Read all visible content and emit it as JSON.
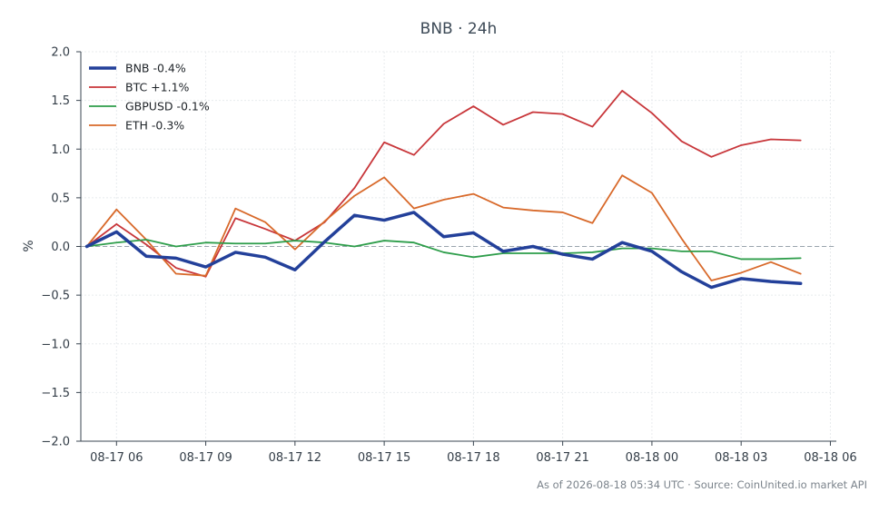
{
  "chart_data": {
    "type": "line",
    "title": "BNB · 24h",
    "xlabel": "",
    "ylabel": "%",
    "ylim": [
      -2.0,
      2.0
    ],
    "xlim": [
      "2026-08-17 04:48",
      "2026-08-18 06:12"
    ],
    "yticks": [
      -2.0,
      -1.5,
      -1.0,
      -0.5,
      0.0,
      0.5,
      1.0,
      1.5,
      2.0
    ],
    "ytick_labels": [
      "−2.0",
      "−1.5",
      "−1.0",
      "−0.5",
      "0.0",
      "0.5",
      "1.0",
      "1.5",
      "2.0"
    ],
    "xticks": [
      "2026-08-17 06:00",
      "2026-08-17 09:00",
      "2026-08-17 12:00",
      "2026-08-17 15:00",
      "2026-08-17 18:00",
      "2026-08-17 21:00",
      "2026-08-18 00:00",
      "2026-08-18 03:00",
      "2026-08-18 06:00"
    ],
    "xtick_labels": [
      "08-17 06",
      "08-17 09",
      "08-17 12",
      "08-17 15",
      "08-17 18",
      "08-17 21",
      "08-18 00",
      "08-18 03",
      "08-18 06"
    ],
    "grid": true,
    "zero_line": true,
    "legend_position": "top-left",
    "x": [
      "2026-08-17 05:00",
      "2026-08-17 06:00",
      "2026-08-17 07:00",
      "2026-08-17 08:00",
      "2026-08-17 09:00",
      "2026-08-17 10:00",
      "2026-08-17 11:00",
      "2026-08-17 12:00",
      "2026-08-17 13:00",
      "2026-08-17 14:00",
      "2026-08-17 15:00",
      "2026-08-17 16:00",
      "2026-08-17 17:00",
      "2026-08-17 18:00",
      "2026-08-17 19:00",
      "2026-08-17 20:00",
      "2026-08-17 21:00",
      "2026-08-17 22:00",
      "2026-08-17 23:00",
      "2026-08-18 00:00",
      "2026-08-18 01:00",
      "2026-08-18 02:00",
      "2026-08-18 03:00",
      "2026-08-18 04:00",
      "2026-08-18 05:00"
    ],
    "series": [
      {
        "name": "BNB -0.4%",
        "color": "#23409a",
        "width": 3.5,
        "values": [
          0.0,
          0.15,
          -0.1,
          -0.12,
          -0.21,
          -0.06,
          -0.11,
          -0.24,
          0.05,
          0.32,
          0.27,
          0.35,
          0.1,
          0.14,
          -0.05,
          0.0,
          -0.08,
          -0.13,
          0.04,
          -0.05,
          -0.26,
          -0.42,
          -0.33,
          -0.36,
          -0.38
        ]
      },
      {
        "name": "BTC +1.1%",
        "color": "#c8363a",
        "width": 1.8,
        "values": [
          0.0,
          0.23,
          0.02,
          -0.22,
          -0.31,
          0.29,
          0.18,
          0.06,
          0.25,
          0.6,
          1.07,
          0.94,
          1.26,
          1.44,
          1.25,
          1.38,
          1.36,
          1.23,
          1.6,
          1.37,
          1.08,
          0.92,
          1.04,
          1.1,
          1.09
        ]
      },
      {
        "name": "GBPUSD -0.1%",
        "color": "#2d9d4a",
        "width": 1.8,
        "values": [
          0.0,
          0.04,
          0.07,
          0.0,
          0.04,
          0.03,
          0.03,
          0.06,
          0.04,
          0.0,
          0.06,
          0.04,
          -0.06,
          -0.11,
          -0.07,
          -0.07,
          -0.07,
          -0.06,
          -0.02,
          -0.02,
          -0.05,
          -0.05,
          -0.13,
          -0.13,
          -0.12
        ]
      },
      {
        "name": "ETH -0.3%",
        "color": "#d8692a",
        "width": 1.8,
        "values": [
          0.0,
          0.38,
          0.07,
          -0.28,
          -0.3,
          0.39,
          0.25,
          -0.03,
          0.26,
          0.52,
          0.71,
          0.39,
          0.48,
          0.54,
          0.4,
          0.37,
          0.35,
          0.24,
          0.73,
          0.55,
          0.08,
          -0.35,
          -0.27,
          -0.16,
          -0.28
        ]
      }
    ]
  },
  "footer": {
    "text": "As of 2026-08-18 05:34 UTC · Source: CoinUnited.io market API"
  }
}
